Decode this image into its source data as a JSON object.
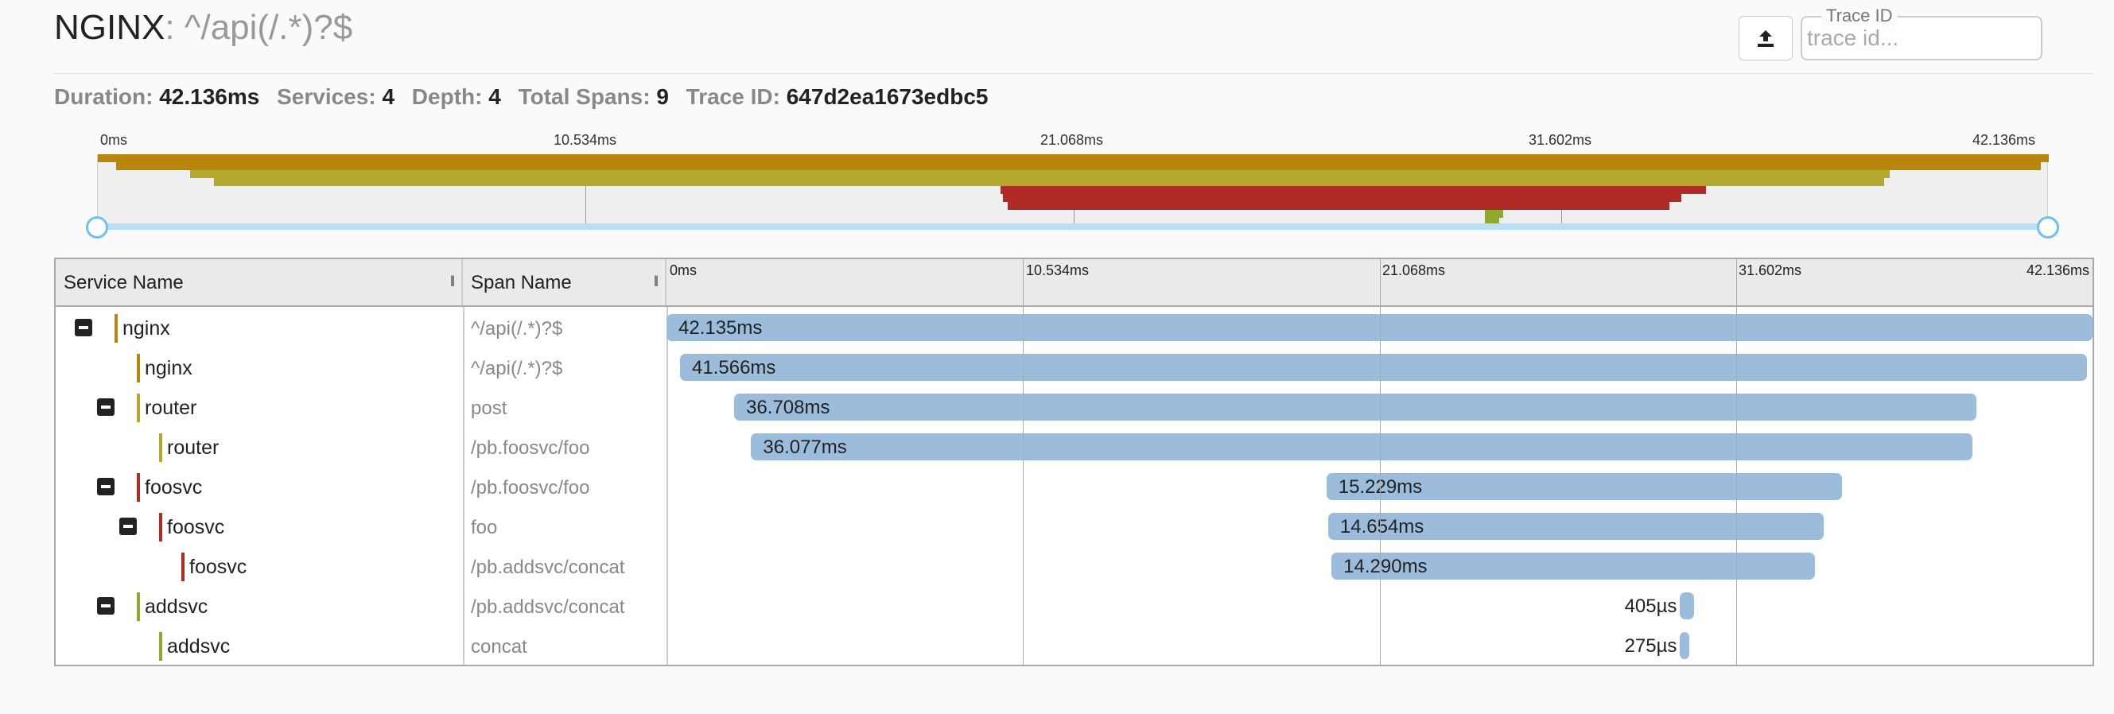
{
  "header": {
    "service": "NGINX",
    "separator": ":",
    "span": "^/api(/.*)?$",
    "trace_id_label": "Trace ID",
    "trace_id_placeholder": "trace id...",
    "upload_icon": "upload-icon"
  },
  "summary": {
    "duration_label": "Duration:",
    "duration": "42.136ms",
    "services_label": "Services:",
    "services": "4",
    "depth_label": "Depth:",
    "depth": "4",
    "total_spans_label": "Total Spans:",
    "total_spans": "9",
    "trace_id_label": "Trace ID:",
    "trace_id": "647d2ea1673edbc5"
  },
  "ticks": [
    "0ms",
    "10.534ms",
    "21.068ms",
    "31.602ms",
    "42.136ms"
  ],
  "columns": {
    "service": "Service Name",
    "span": "Span Name"
  },
  "colors": {
    "nginx": "#b8860b",
    "router": "#b5a82e",
    "foosvc": "#b02b26",
    "addsvc": "#8fa82e",
    "bar": "#9bbcdb",
    "handle": "#6cc1ee"
  },
  "spans": [
    {
      "service": "nginx",
      "name": "^/api(/.*)?$",
      "duration": "42.135ms",
      "depth": 0,
      "toggle": true,
      "start_ms": 0.0,
      "dur_ms": 42.135
    },
    {
      "service": "nginx",
      "name": "^/api(/.*)?$",
      "duration": "41.566ms",
      "depth": 1,
      "toggle": false,
      "start_ms": 0.4,
      "dur_ms": 41.566
    },
    {
      "service": "router",
      "name": "post",
      "duration": "36.708ms",
      "depth": 1,
      "toggle": true,
      "start_ms": 2.0,
      "dur_ms": 36.708
    },
    {
      "service": "router",
      "name": "/pb.foosvc/foo",
      "duration": "36.077ms",
      "depth": 2,
      "toggle": false,
      "start_ms": 2.5,
      "dur_ms": 36.077
    },
    {
      "service": "foosvc",
      "name": "/pb.foosvc/foo",
      "duration": "15.229ms",
      "depth": 1,
      "toggle": true,
      "start_ms": 19.5,
      "dur_ms": 15.229
    },
    {
      "service": "foosvc",
      "name": "foo",
      "duration": "14.654ms",
      "depth": 2,
      "toggle": true,
      "start_ms": 19.55,
      "dur_ms": 14.654
    },
    {
      "service": "foosvc",
      "name": "/pb.addsvc/concat",
      "duration": "14.290ms",
      "depth": 3,
      "toggle": false,
      "start_ms": 19.65,
      "dur_ms": 14.29
    },
    {
      "service": "addsvc",
      "name": "/pb.addsvc/concat",
      "duration": "405µs",
      "depth": 1,
      "toggle": true,
      "start_ms": 29.95,
      "dur_ms": 0.405
    },
    {
      "service": "addsvc",
      "name": "concat",
      "duration": "275µs",
      "depth": 2,
      "toggle": false,
      "start_ms": 29.95,
      "dur_ms": 0.275
    }
  ]
}
